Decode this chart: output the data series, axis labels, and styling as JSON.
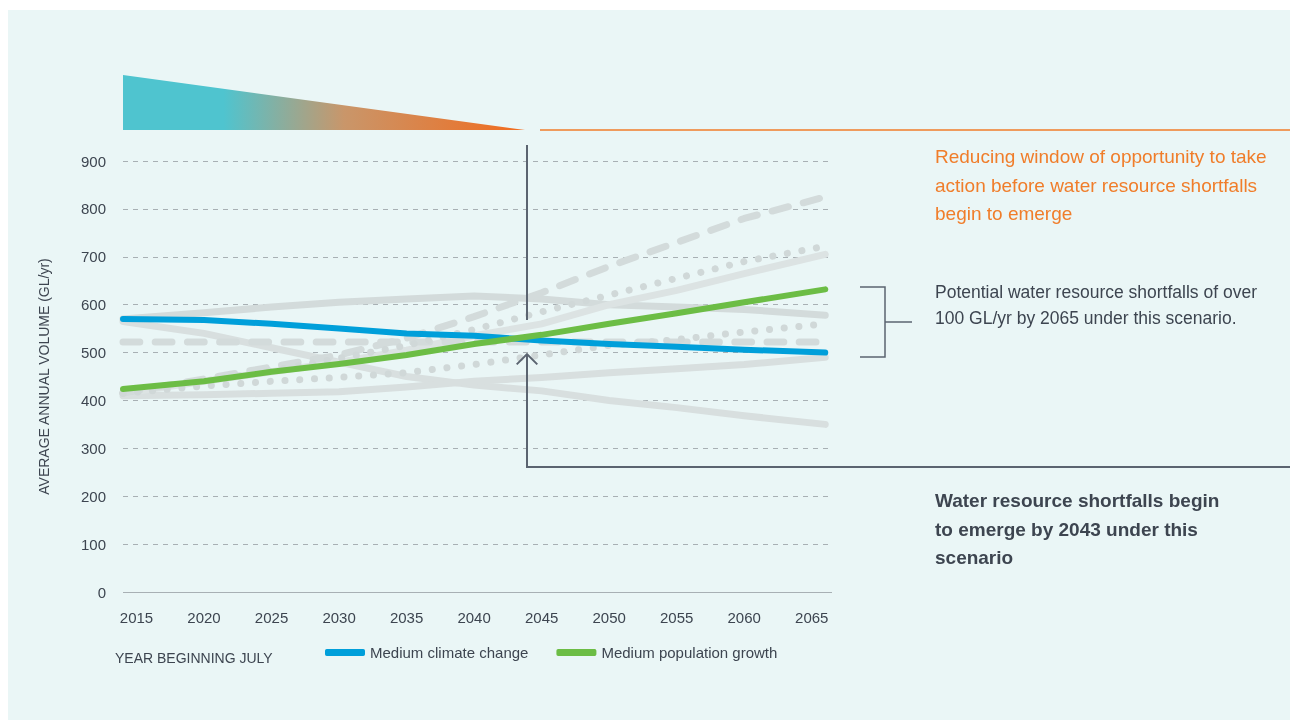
{
  "chart_data": {
    "type": "line",
    "xlabel": "YEAR BEGINNING JULY",
    "ylabel": "AVERAGE ANNUAL VOLUME (GL/yr)",
    "x": [
      2014,
      2020,
      2025,
      2030,
      2035,
      2040,
      2045,
      2050,
      2055,
      2060,
      2066
    ],
    "xlim": [
      2014,
      2066.5
    ],
    "xticks": [
      2015,
      2020,
      2025,
      2030,
      2035,
      2040,
      2045,
      2050,
      2055,
      2060,
      2065
    ],
    "ylim": [
      0,
      900
    ],
    "yticks": [
      0,
      100,
      200,
      300,
      400,
      500,
      600,
      700,
      800,
      900
    ],
    "grid": "y",
    "legend": "bottom",
    "marker": "none",
    "series": [
      {
        "color": "#d3dbdb",
        "line_style": "solid",
        "values": [
          570,
          583,
          595,
          605,
          612,
          618,
          612,
          600,
          595,
          590,
          578
        ]
      },
      {
        "color": "#d8dfdf",
        "line_style": "solid",
        "values": [
          565,
          540,
          510,
          480,
          450,
          432,
          420,
          400,
          385,
          368,
          350
        ]
      },
      {
        "color": "#d8dfdf",
        "line_style": "solid",
        "values": [
          410,
          412,
          415,
          418,
          428,
          440,
          448,
          458,
          466,
          475,
          490
        ]
      },
      {
        "color": "#dce3e3",
        "line_style": "solid",
        "values": [
          415,
          440,
          460,
          480,
          505,
          535,
          560,
          600,
          630,
          665,
          705
        ]
      },
      {
        "color": "#d3dbdb",
        "line_style": "dashed",
        "values": [
          522,
          522,
          522,
          522,
          522,
          522,
          522,
          522,
          522,
          522,
          522
        ]
      },
      {
        "color": "#d3dbdb",
        "line_style": "dashed",
        "values": [
          415,
          445,
          470,
          495,
          530,
          575,
          625,
          680,
          730,
          780,
          825
        ]
      },
      {
        "color": "#d0d8d8",
        "line_style": "dotted",
        "values": [
          415,
          440,
          462,
          488,
          515,
          548,
          585,
          620,
          655,
          690,
          722
        ]
      },
      {
        "color": "#d0d8d8",
        "line_style": "dotted",
        "values": [
          415,
          430,
          440,
          448,
          458,
          475,
          495,
          515,
          527,
          543,
          560
        ]
      },
      {
        "name": "Medium climate change",
        "color": "#009fda",
        "line_style": "solid",
        "values": [
          570,
          568,
          560,
          550,
          540,
          535,
          525,
          518,
          512,
          506,
          500
        ]
      },
      {
        "name": "Medium population growth",
        "color": "#6cbd45",
        "line_style": "solid",
        "values": [
          424,
          440,
          460,
          476,
          495,
          518,
          537,
          560,
          582,
          605,
          632
        ]
      }
    ],
    "annotations": [
      "Reducing window of opportunity to take action before water resource shortfalls begin to emerge",
      "Potential water resource shortfalls of over 100 GL/yr by 2065 under this scenario.",
      "Water resource shortfalls begin to emerge by 2043 under this scenario"
    ]
  }
}
